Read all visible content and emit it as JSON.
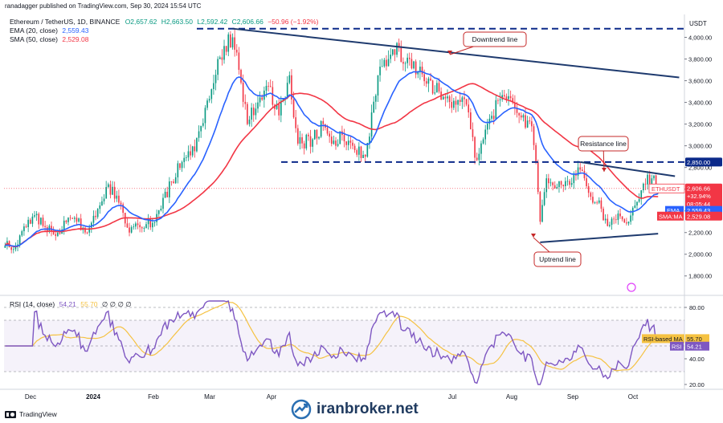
{
  "header": {
    "publisher": "ranadagger published on TradingView.com, Sep 30, 2024 15:54 UTC",
    "symbol_line": "Ethereum / TetherUS, 1D, BINANCE",
    "open": "O2,657.62",
    "high": "H2,663.50",
    "low": "L2,592.42",
    "close": "C2,606.66",
    "change": "−50.96 (−1.92%)"
  },
  "legend": {
    "ema_label": "EMA (20, close)",
    "ema_value": "2,559.43",
    "sma_label": "SMA (50, close)",
    "sma_value": "2,529.08",
    "rsi_label": "RSI (14, close)",
    "rsi_value": "54.21",
    "rsi_ma_value": "55.70",
    "rsi_extra": "∅ ∅ ∅ ∅"
  },
  "price_axis": {
    "currency": "USDT",
    "ticks": [
      "4,000.00",
      "3,800.00",
      "3,600.00",
      "3,400.00",
      "3,200.00",
      "3,000.00",
      "2,800.00",
      "2,600.00",
      "2,400.00",
      "2,200.00",
      "2,000.00",
      "1,800.00"
    ]
  },
  "price_tags": {
    "level_2850": "2,850.00",
    "symbol": "ETHUSDT",
    "last": "2,606.66",
    "change_pct": "+32.94%",
    "countdown": "08:05:44",
    "ema_tag": "EMA",
    "ema_val": "2,559.43",
    "sma_tag": "SMA:MA",
    "sma_val": "2,529.08"
  },
  "rsi_axis": {
    "ticks": [
      "80.00",
      "40.00",
      "20.00"
    ],
    "rsi_ma_tag": "RSI-based MA",
    "rsi_ma_val": "55.70",
    "rsi_tag": "RSI",
    "rsi_val": "54.21"
  },
  "time_axis": [
    "Dec",
    "2024",
    "Feb",
    "Mar",
    "Apr",
    "Jul",
    "Aug",
    "Sep",
    "Oct"
  ],
  "annotations": {
    "downtrend": "Downtrend line",
    "resistance": "Resistance line",
    "uptrend": "Uptrend line"
  },
  "footer": {
    "tradingview": "TradingView",
    "watermark": "iranbroker.net"
  },
  "colors": {
    "up": "#089981",
    "down": "#f23645",
    "ema": "#2962ff",
    "sma": "#f23645",
    "rsi": "#7e57c2",
    "rsi_ma": "#f5c242",
    "trend": "#1e3a6e",
    "level": "#0c2a8a"
  },
  "chart_data": {
    "type": "candlestick",
    "title": "Ethereum / TetherUS, 1D, BINANCE",
    "y_range": [
      1700,
      4100
    ],
    "x_start": "2023-11-25",
    "x_end": "2024-10-13",
    "x_months": [
      "Dec",
      "2024",
      "Feb",
      "Mar",
      "Apr",
      "Jul",
      "Aug",
      "Sep",
      "Oct"
    ],
    "close_anchors": [
      [
        "2023-11-25",
        2080
      ],
      [
        "2023-12-01",
        2090
      ],
      [
        "2023-12-05",
        2250
      ],
      [
        "2023-12-09",
        2360
      ],
      [
        "2023-12-14",
        2250
      ],
      [
        "2023-12-20",
        2200
      ],
      [
        "2023-12-23",
        2310
      ],
      [
        "2023-12-29",
        2300
      ],
      [
        "2024-01-03",
        2200
      ],
      [
        "2024-01-09",
        2450
      ],
      [
        "2024-01-12",
        2620
      ],
      [
        "2024-01-17",
        2540
      ],
      [
        "2024-01-23",
        2200
      ],
      [
        "2024-01-27",
        2270
      ],
      [
        "2024-02-03",
        2290
      ],
      [
        "2024-02-07",
        2420
      ],
      [
        "2024-02-12",
        2670
      ],
      [
        "2024-02-17",
        2850
      ],
      [
        "2024-02-23",
        2950
      ],
      [
        "2024-02-28",
        3350
      ],
      [
        "2024-03-05",
        3800
      ],
      [
        "2024-03-12",
        4000
      ],
      [
        "2024-03-15",
        3700
      ],
      [
        "2024-03-19",
        3200
      ],
      [
        "2024-03-24",
        3400
      ],
      [
        "2024-03-29",
        3550
      ],
      [
        "2024-04-03",
        3280
      ],
      [
        "2024-04-08",
        3650
      ],
      [
        "2024-04-12",
        3020
      ],
      [
        "2024-04-19",
        3060
      ],
      [
        "2024-04-24",
        3200
      ],
      [
        "2024-04-30",
        3000
      ],
      [
        "2024-05-03",
        3100
      ],
      [
        "2024-05-09",
        2960
      ],
      [
        "2024-05-14",
        2900
      ],
      [
        "2024-05-20",
        3650
      ],
      [
        "2024-05-27",
        3890
      ],
      [
        "2024-06-04",
        3800
      ],
      [
        "2024-06-10",
        3660
      ],
      [
        "2024-06-18",
        3500
      ],
      [
        "2024-06-24",
        3350
      ],
      [
        "2024-07-01",
        3380
      ],
      [
        "2024-07-05",
        2890
      ],
      [
        "2024-07-09",
        3060
      ],
      [
        "2024-07-16",
        3420
      ],
      [
        "2024-07-22",
        3440
      ],
      [
        "2024-07-26",
        3280
      ],
      [
        "2024-08-01",
        3180
      ],
      [
        "2024-08-03",
        2850
      ],
      [
        "2024-08-05",
        2300
      ],
      [
        "2024-08-08",
        2700
      ],
      [
        "2024-08-13",
        2620
      ],
      [
        "2024-08-19",
        2640
      ],
      [
        "2024-08-24",
        2780
      ],
      [
        "2024-08-29",
        2530
      ],
      [
        "2024-09-03",
        2420
      ],
      [
        "2024-09-06",
        2260
      ],
      [
        "2024-09-12",
        2350
      ],
      [
        "2024-09-16",
        2300
      ],
      [
        "2024-09-19",
        2450
      ],
      [
        "2024-09-23",
        2650
      ],
      [
        "2024-09-27",
        2700
      ],
      [
        "2024-09-30",
        2607
      ]
    ],
    "annotations": [
      {
        "label": "Downtrend line",
        "from": [
          "2024-03-12",
          4080
        ],
        "to": [
          "2024-10-10",
          3630
        ]
      },
      {
        "label": "Resistance line",
        "from": [
          "2024-08-24",
          2850
        ],
        "to": [
          "2024-10-08",
          2720
        ]
      },
      {
        "label": "Uptrend line",
        "from": [
          "2024-08-05",
          2110
        ],
        "to": [
          "2024-09-30",
          2190
        ]
      }
    ],
    "horizontal_levels": [
      4080,
      2850
    ],
    "ema20_last": 2559.43,
    "sma50_last": 2529.08,
    "rsi": {
      "period": 14,
      "last": 54.21,
      "ma_last": 55.7,
      "range": [
        20,
        85
      ],
      "band": [
        30,
        70
      ]
    }
  }
}
